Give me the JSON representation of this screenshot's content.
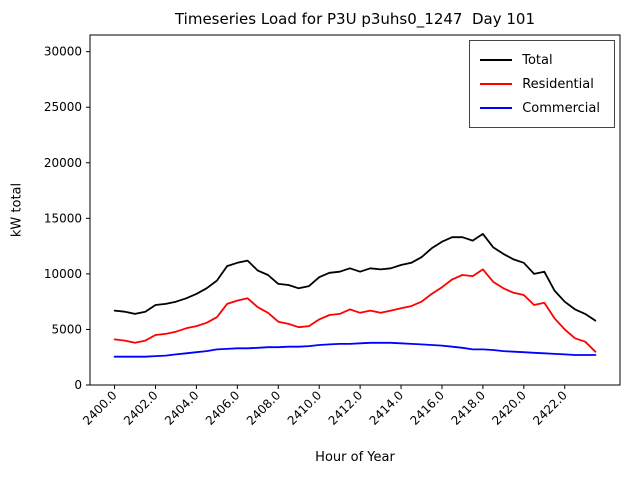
{
  "chart_data": {
    "type": "line",
    "title": "Timeseries Load for P3U p3uhs0_1247  Day 101",
    "xlabel": "Hour of Year",
    "ylabel": "kW total",
    "xlim": [
      2398.8,
      2424.7
    ],
    "ylim": [
      0,
      31500
    ],
    "grid": false,
    "legend_position": "upper right",
    "xticks": [
      2400,
      2402,
      2404,
      2406,
      2408,
      2410,
      2412,
      2414,
      2416,
      2418,
      2420,
      2422
    ],
    "xtick_labels": [
      "2400.0",
      "2402.0",
      "2404.0",
      "2406.0",
      "2408.0",
      "2410.0",
      "2412.0",
      "2414.0",
      "2416.0",
      "2418.0",
      "2420.0",
      "2422.0"
    ],
    "yticks": [
      0,
      5000,
      10000,
      15000,
      20000,
      25000,
      30000
    ],
    "ytick_labels": [
      "0",
      "5000",
      "10000",
      "15000",
      "20000",
      "25000",
      "30000"
    ],
    "x": [
      2400.0,
      2400.5,
      2401.0,
      2401.5,
      2402.0,
      2402.5,
      2403.0,
      2403.5,
      2404.0,
      2404.5,
      2405.0,
      2405.5,
      2406.0,
      2406.5,
      2407.0,
      2407.5,
      2408.0,
      2408.5,
      2409.0,
      2409.5,
      2410.0,
      2410.5,
      2411.0,
      2411.5,
      2412.0,
      2412.5,
      2413.0,
      2413.5,
      2414.0,
      2414.5,
      2415.0,
      2415.5,
      2416.0,
      2416.5,
      2417.0,
      2417.5,
      2418.0,
      2418.5,
      2419.0,
      2419.5,
      2420.0,
      2420.5,
      2421.0,
      2421.5,
      2422.0,
      2422.5,
      2423.0,
      2423.5
    ],
    "series": [
      {
        "name": "Total",
        "color": "#000000",
        "values": [
          6700,
          6600,
          6400,
          6600,
          7200,
          7300,
          7500,
          7800,
          8200,
          8700,
          9400,
          10700,
          11000,
          11200,
          10300,
          9900,
          9100,
          9000,
          8700,
          8900,
          9700,
          10100,
          10200,
          10500,
          10200,
          10500,
          10400,
          10500,
          10800,
          11000,
          11500,
          12300,
          12900,
          13300,
          13300,
          13000,
          13600,
          12400,
          11800,
          11300,
          11000,
          10000,
          10200,
          8500,
          7500,
          6800,
          6400,
          5800
        ]
      },
      {
        "name": "Residential",
        "color": "#ff0000",
        "values": [
          4100,
          4000,
          3800,
          4000,
          4500,
          4600,
          4800,
          5100,
          5300,
          5600,
          6100,
          7300,
          7600,
          7800,
          7000,
          6500,
          5700,
          5500,
          5200,
          5300,
          5900,
          6300,
          6400,
          6800,
          6500,
          6700,
          6500,
          6700,
          6900,
          7100,
          7500,
          8200,
          8800,
          9500,
          9900,
          9800,
          10400,
          9300,
          8700,
          8300,
          8100,
          7200,
          7400,
          6000,
          5000,
          4200,
          3900,
          3000
        ]
      },
      {
        "name": "Commercial",
        "color": "#0000ff",
        "values": [
          2550,
          2550,
          2550,
          2550,
          2600,
          2650,
          2750,
          2850,
          2950,
          3050,
          3200,
          3250,
          3300,
          3300,
          3350,
          3400,
          3400,
          3450,
          3450,
          3500,
          3600,
          3650,
          3700,
          3700,
          3750,
          3800,
          3800,
          3800,
          3750,
          3700,
          3650,
          3600,
          3550,
          3450,
          3350,
          3200,
          3200,
          3150,
          3050,
          3000,
          2950,
          2900,
          2850,
          2800,
          2750,
          2700,
          2700,
          2700
        ]
      }
    ]
  }
}
